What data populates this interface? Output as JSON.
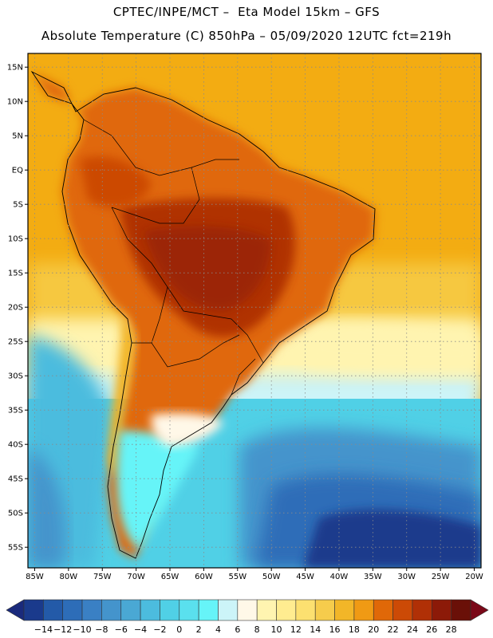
{
  "header": {
    "line1": "CPTEC/INPE/MCT –  Eta Model 15km – GFS",
    "line2": "Absolute Temperature (C) 850hPa – 05/09/2020 12UTC fct=219h"
  },
  "map": {
    "lon_range": [
      -86,
      -19
    ],
    "lat_range": [
      -58,
      17
    ],
    "lat_ticks": [
      {
        "value": 15,
        "label": "15N"
      },
      {
        "value": 10,
        "label": "10N"
      },
      {
        "value": 5,
        "label": "5N"
      },
      {
        "value": 0,
        "label": "EQ"
      },
      {
        "value": -5,
        "label": "5S"
      },
      {
        "value": -10,
        "label": "10S"
      },
      {
        "value": -15,
        "label": "15S"
      },
      {
        "value": -20,
        "label": "20S"
      },
      {
        "value": -25,
        "label": "25S"
      },
      {
        "value": -30,
        "label": "30S"
      },
      {
        "value": -35,
        "label": "35S"
      },
      {
        "value": -40,
        "label": "40S"
      },
      {
        "value": -45,
        "label": "45S"
      },
      {
        "value": -50,
        "label": "50S"
      },
      {
        "value": -55,
        "label": "55S"
      }
    ],
    "lon_ticks": [
      {
        "value": -85,
        "label": "85W"
      },
      {
        "value": -80,
        "label": "80W"
      },
      {
        "value": -75,
        "label": "75W"
      },
      {
        "value": -70,
        "label": "70W"
      },
      {
        "value": -65,
        "label": "65W"
      },
      {
        "value": -60,
        "label": "60W"
      },
      {
        "value": -55,
        "label": "55W"
      },
      {
        "value": -50,
        "label": "50W"
      },
      {
        "value": -45,
        "label": "45W"
      },
      {
        "value": -40,
        "label": "40W"
      },
      {
        "value": -35,
        "label": "35W"
      },
      {
        "value": -30,
        "label": "30W"
      },
      {
        "value": -25,
        "label": "25W"
      },
      {
        "value": -20,
        "label": "20W"
      }
    ]
  },
  "colorbar": {
    "labels": [
      "-14",
      "-12",
      "-10",
      "-8",
      "-6",
      "-4",
      "-2",
      "0",
      "2",
      "4",
      "6",
      "8",
      "10",
      "12",
      "14",
      "16",
      "18",
      "20",
      "22",
      "24",
      "26",
      "28"
    ],
    "colors": [
      "#1a3a8c",
      "#235aa8",
      "#2d6db8",
      "#3a80c4",
      "#4494cc",
      "#4aa8d4",
      "#4cbcde",
      "#50d0e6",
      "#5ae0ee",
      "#66f4f8",
      "#ccf4f8",
      "#fff8e8",
      "#fff4b0",
      "#ffec90",
      "#fce070",
      "#f6cc4c",
      "#f2b628",
      "#f09a14",
      "#e06808",
      "#cc4a06",
      "#b03006",
      "#8c1a08",
      "#6a1008"
    ],
    "under_color": "#1a2a7c",
    "over_color": "#7a0818"
  },
  "colors": {
    "ocean_north": "#f3ac12",
    "land_hot": "#cc4a06",
    "cold_ocean": "#2d6db8",
    "coast_line": "#000000"
  }
}
